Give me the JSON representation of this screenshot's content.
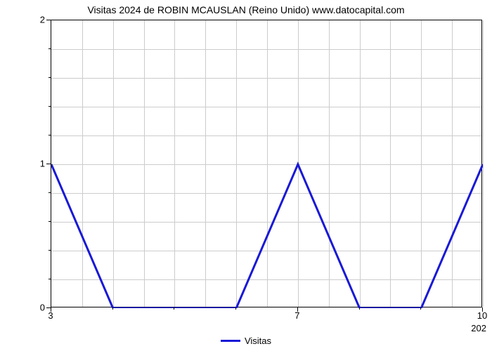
{
  "chart": {
    "type": "line",
    "title": "Visitas 2024 de ROBIN MCAUSLAN (Reino Unido) www.datocapital.com",
    "title_fontsize": 14,
    "background_color": "#ffffff",
    "grid_color": "#cccccc",
    "axis_color": "#000000",
    "x": {
      "min": 3,
      "max": 10,
      "tick_labels": [
        "3",
        "7",
        "10"
      ],
      "tick_positions": [
        3,
        7,
        10
      ],
      "minor_tick_positions": [
        4,
        5,
        6,
        8,
        9
      ],
      "right_label": "202"
    },
    "y": {
      "min": 0,
      "max": 2,
      "tick_labels": [
        "0",
        "1",
        "2"
      ],
      "tick_positions": [
        0,
        1,
        2
      ],
      "minor_steps_per_major": 5
    },
    "grid": {
      "v_positions": [
        3.5,
        4,
        4.5,
        5,
        5.5,
        6,
        6.5,
        7,
        7.5,
        8,
        8.5,
        9,
        9.5,
        10
      ],
      "h_count": 10
    },
    "series": {
      "color": "#1919d6",
      "x": [
        3,
        4,
        5,
        6,
        7,
        8,
        9,
        10
      ],
      "y": [
        1,
        0,
        0,
        0,
        1,
        0,
        0,
        1
      ]
    },
    "legend": {
      "label": "Visitas",
      "swatch_color": "#1919d6"
    }
  }
}
